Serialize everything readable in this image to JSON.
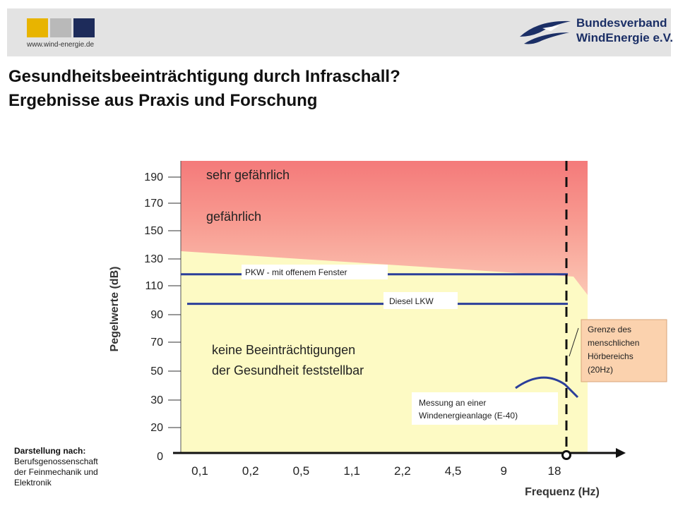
{
  "header": {
    "url": "www.wind-energie.de",
    "org_line1": "Bundesverband",
    "org_line2": "WindEnergie e.V.",
    "logo_colors": [
      "#e8b400",
      "#b9b9b9",
      "#1d2b5a"
    ]
  },
  "title": {
    "line1": "Gesundheitsbeeinträchtigung durch Infraschall?",
    "line2": "Ergebnisse aus Praxis und Forschung"
  },
  "source": {
    "heading": "Darstellung nach:",
    "line1": "Berufsgenossenschaft",
    "line2": "der Feinmechanik und",
    "line3": "Elektronik"
  },
  "chart_data": {
    "type": "area",
    "ylabel": "Pegelwerte (dB)",
    "xlabel": "Frequenz (Hz)",
    "x_ticks": [
      "0,1",
      "0,2",
      "0,5",
      "1,1",
      "2,2",
      "4,5",
      "9",
      "18"
    ],
    "y_ticks": [
      190,
      170,
      150,
      130,
      110,
      90,
      70,
      50,
      30,
      20,
      0
    ],
    "zones": [
      {
        "name": "sehr gefährlich",
        "color": "#f47a7a"
      },
      {
        "name": "gefährlich",
        "color": "#f8b0a2"
      },
      {
        "name": "keine Beeinträchtigungen der Gesundheit feststellbar",
        "lines": [
          "keine Beeinträchtigungen",
          "der Gesundheit feststellbar"
        ],
        "color": "#fdfac4"
      }
    ],
    "reference_lines": [
      {
        "label": "PKW - mit offenem Fenster",
        "db": 118
      },
      {
        "label": "Diesel LKW",
        "db": 97
      }
    ],
    "boundary": {
      "label_lines": [
        "Grenze des",
        "menschlichen",
        "Hörbereichs",
        "(20Hz)"
      ],
      "x": "20Hz"
    },
    "measurement": {
      "label_lines": [
        "Messung an einer",
        "Windenergieanlage (E-40)"
      ]
    },
    "series_color": "#2b3e9a"
  }
}
